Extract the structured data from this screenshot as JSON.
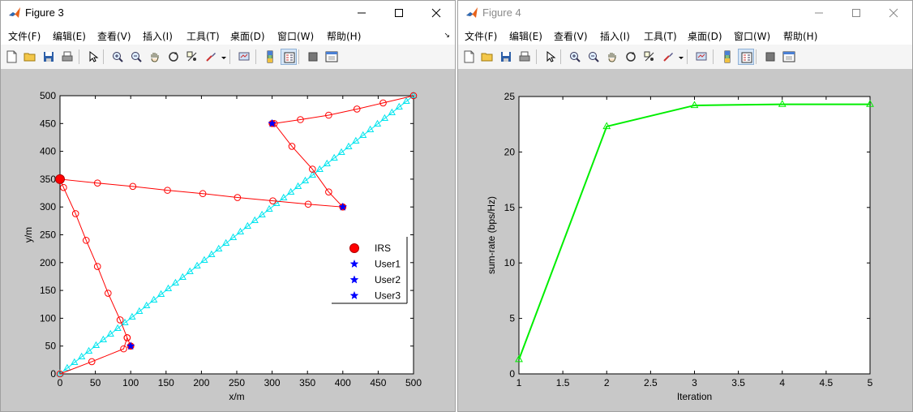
{
  "windows": [
    {
      "title": "Figure 3",
      "menu": [
        "文件(F)",
        "编辑(E)",
        "查看(V)",
        "插入(I)",
        "工具(T)",
        "桌面(D)",
        "窗口(W)",
        "帮助(H)"
      ],
      "menu_more_icon": "chevron-icon"
    },
    {
      "title": "Figure 4",
      "menu": [
        "文件(F)",
        "编辑(E)",
        "查看(V)",
        "插入(I)",
        "工具(T)",
        "桌面(D)",
        "窗口(W)",
        "帮助(H)"
      ],
      "menu_more_icon": "chevron-icon"
    }
  ],
  "toolbar_icons": [
    "new-figure-icon",
    "open-file-icon",
    "save-icon",
    "print-icon",
    "pointer-icon",
    "zoom-in-icon",
    "zoom-out-icon",
    "pan-icon",
    "rotate-icon",
    "data-cursor-icon",
    "brush-icon",
    "link-icon",
    "colorbar-icon",
    "legend-icon",
    "hide-plot-tools-icon",
    "show-plot-tools-icon"
  ],
  "chart_data": [
    {
      "type": "line",
      "xlabel": "x/m",
      "ylabel": "y/m",
      "xlim": [
        0,
        500
      ],
      "ylim": [
        0,
        500
      ],
      "xticks": [
        0,
        50,
        100,
        150,
        200,
        250,
        300,
        350,
        400,
        450,
        500
      ],
      "yticks": [
        0,
        50,
        100,
        150,
        200,
        250,
        300,
        350,
        400,
        450,
        500
      ],
      "grid": false,
      "legend_position": "right",
      "legend": [
        {
          "label": "IRS",
          "marker": "filled-circle",
          "color": "#ff0000"
        },
        {
          "label": "User1",
          "marker": "star",
          "color": "#0000ff"
        },
        {
          "label": "User2",
          "marker": "star",
          "color": "#0000ff"
        },
        {
          "label": "User3",
          "marker": "star",
          "color": "#0000ff"
        }
      ],
      "series": [
        {
          "marker": "triangle",
          "color": "#00e5ee",
          "x": [
            0,
            10.2,
            20.4,
            30.6,
            40.8,
            51,
            61.2,
            71.4,
            81.6,
            91.8,
            102,
            112.2,
            122.4,
            132.7,
            142.9,
            153.1,
            163.3,
            173.5,
            183.7,
            193.9,
            204.1,
            214.3,
            224.5,
            234.7,
            244.9,
            255.1,
            265.3,
            275.5,
            285.7,
            295.9,
            306.1,
            316.3,
            326.5,
            336.7,
            346.9,
            357.1,
            367.3,
            377.6,
            387.8,
            398,
            408.2,
            418.4,
            428.6,
            438.8,
            449,
            459.2,
            469.4,
            479.6,
            489.8,
            500
          ],
          "y": [
            0,
            10.2,
            20.4,
            30.6,
            40.8,
            51,
            61.2,
            71.4,
            81.6,
            91.8,
            102,
            112.2,
            122.4,
            132.7,
            142.9,
            153.1,
            163.3,
            173.5,
            183.7,
            193.9,
            204.1,
            214.3,
            224.5,
            234.7,
            244.9,
            255.1,
            265.3,
            275.5,
            285.7,
            295.9,
            306.1,
            316.3,
            326.5,
            336.7,
            346.9,
            357.1,
            367.3,
            377.6,
            387.8,
            398,
            408.2,
            418.4,
            428.6,
            438.8,
            449,
            459.2,
            469.4,
            479.6,
            489.8,
            500
          ]
        },
        {
          "marker": "circle",
          "color": "#ff0000",
          "x": [
            0,
            45,
            90,
            95,
            100,
            95,
            85,
            68,
            53,
            37,
            22,
            5,
            0,
            53,
            103,
            152,
            202,
            251,
            301,
            351,
            400,
            380,
            357,
            328,
            303,
            340,
            380,
            420,
            457,
            500
          ],
          "y": [
            0,
            22,
            45,
            65,
            50,
            65,
            97,
            145,
            193,
            240,
            288,
            335,
            350,
            343,
            337,
            330,
            324,
            317,
            311,
            305,
            300,
            327,
            368,
            409,
            450,
            457,
            465,
            476,
            487,
            500
          ]
        }
      ],
      "points": [
        {
          "name": "IRS",
          "x": 0,
          "y": 350,
          "marker": "filled-circle",
          "color": "#ff0000"
        },
        {
          "name": "User1",
          "x": 100,
          "y": 50,
          "marker": "star",
          "color": "#0000ff"
        },
        {
          "name": "User2",
          "x": 400,
          "y": 300,
          "marker": "star",
          "color": "#0000ff"
        },
        {
          "name": "User3",
          "x": 300,
          "y": 450,
          "marker": "star",
          "color": "#0000ff"
        }
      ]
    },
    {
      "type": "line",
      "xlabel": "Iteration",
      "ylabel": "sum-rate (bps/Hz)",
      "xlim": [
        1,
        5
      ],
      "ylim": [
        0,
        25
      ],
      "xticks": [
        "1",
        "1.5",
        "2",
        "2.5",
        "3",
        "3.5",
        "4",
        "4.5",
        "5"
      ],
      "yticks": [
        "0",
        "5",
        "10",
        "15",
        "20",
        "25"
      ],
      "grid": false,
      "series": [
        {
          "marker": "triangle",
          "color": "#00ee00",
          "x": [
            1,
            2,
            3,
            4,
            5
          ],
          "y": [
            1.3,
            22.3,
            24.2,
            24.3,
            24.3
          ]
        }
      ]
    }
  ]
}
